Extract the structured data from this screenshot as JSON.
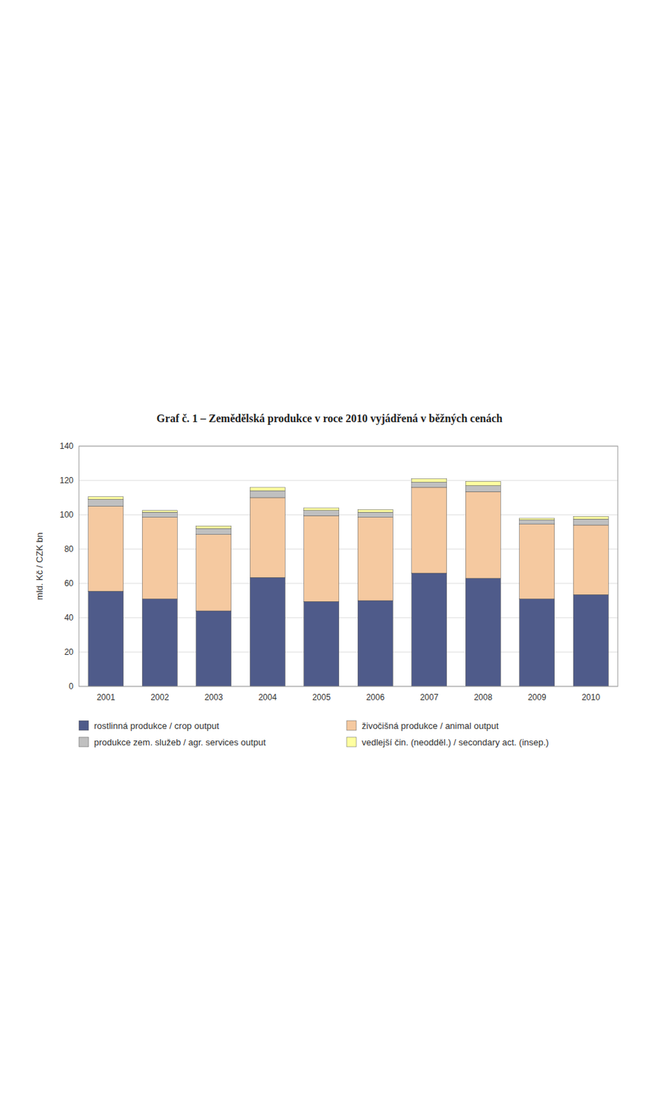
{
  "chart_data": {
    "type": "bar",
    "stacked": true,
    "title": "Graf č. 1 – Zemědělská produkce v roce 2010 vyjádřená v běžných cenách",
    "ylabel": "mld. Kč / CZK bn",
    "categories": [
      "2001",
      "2002",
      "2003",
      "2004",
      "2005",
      "2006",
      "2007",
      "2008",
      "2009",
      "2010"
    ],
    "series": [
      {
        "name": "rostlinná produkce / crop output",
        "color": "#4F5B8A",
        "values": [
          55.5,
          51.0,
          44.0,
          63.5,
          49.5,
          50.0,
          66.0,
          63.0,
          51.0,
          53.5
        ]
      },
      {
        "name": "živočišná produkce / animal output",
        "color": "#F5C9A0",
        "values": [
          49.5,
          47.5,
          44.5,
          46.5,
          50.0,
          48.5,
          50.0,
          50.5,
          43.5,
          40.5
        ]
      },
      {
        "name": "produkce zem. služeb / agr. services output",
        "color": "#C0C0C0",
        "values": [
          4.0,
          3.0,
          3.5,
          4.0,
          3.0,
          3.0,
          3.0,
          3.5,
          2.5,
          3.5
        ]
      },
      {
        "name": "vedlejší čin. (neodděl.) / secondary act. (insep.)",
        "color": "#FFFFA0",
        "values": [
          1.5,
          1.0,
          1.5,
          2.0,
          1.5,
          1.5,
          2.0,
          2.5,
          1.0,
          1.5
        ]
      }
    ],
    "ylim": [
      0,
      140
    ],
    "yticks": [
      0,
      20,
      40,
      60,
      80,
      100,
      120,
      140
    ],
    "grid": true,
    "legend": "bottom"
  }
}
